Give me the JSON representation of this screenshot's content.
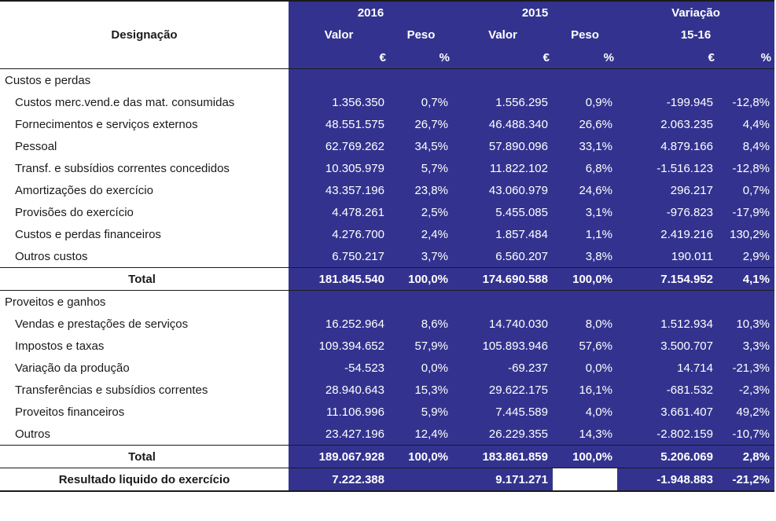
{
  "header": {
    "designacao": "Designação",
    "year_2016": "2016",
    "year_2015": "2015",
    "variacao": "Variação",
    "periodo": "15-16",
    "valor": "Valor",
    "peso": "Peso",
    "euro": "€",
    "percent": "%"
  },
  "custos": {
    "title": "Custos e perdas",
    "rows": [
      {
        "label": "Custos merc.vend.e das mat. consumidas",
        "v2016": "1.356.350",
        "p2016": "0,7%",
        "v2015": "1.556.295",
        "p2015": "0,9%",
        "var_eur": "-199.945",
        "var_pct": "-12,8%"
      },
      {
        "label": "Fornecimentos e serviços externos",
        "v2016": "48.551.575",
        "p2016": "26,7%",
        "v2015": "46.488.340",
        "p2015": "26,6%",
        "var_eur": "2.063.235",
        "var_pct": "4,4%"
      },
      {
        "label": "Pessoal",
        "v2016": "62.769.262",
        "p2016": "34,5%",
        "v2015": "57.890.096",
        "p2015": "33,1%",
        "var_eur": "4.879.166",
        "var_pct": "8,4%"
      },
      {
        "label": "Transf. e subsídios correntes concedidos",
        "v2016": "10.305.979",
        "p2016": "5,7%",
        "v2015": "11.822.102",
        "p2015": "6,8%",
        "var_eur": "-1.516.123",
        "var_pct": "-12,8%"
      },
      {
        "label": "Amortizações do exercício",
        "v2016": "43.357.196",
        "p2016": "23,8%",
        "v2015": "43.060.979",
        "p2015": "24,6%",
        "var_eur": "296.217",
        "var_pct": "0,7%"
      },
      {
        "label": "Provisões do exercício",
        "v2016": "4.478.261",
        "p2016": "2,5%",
        "v2015": "5.455.085",
        "p2015": "3,1%",
        "var_eur": "-976.823",
        "var_pct": "-17,9%"
      },
      {
        "label": "Custos e perdas financeiros",
        "v2016": "4.276.700",
        "p2016": "2,4%",
        "v2015": "1.857.484",
        "p2015": "1,1%",
        "var_eur": "2.419.216",
        "var_pct": "130,2%"
      },
      {
        "label": "Outros custos",
        "v2016": "6.750.217",
        "p2016": "3,7%",
        "v2015": "6.560.207",
        "p2015": "3,8%",
        "var_eur": "190.011",
        "var_pct": "2,9%"
      }
    ],
    "total": {
      "label": "Total",
      "v2016": "181.845.540",
      "p2016": "100,0%",
      "v2015": "174.690.588",
      "p2015": "100,0%",
      "var_eur": "7.154.952",
      "var_pct": "4,1%"
    }
  },
  "proveitos": {
    "title": "Proveitos e ganhos",
    "rows": [
      {
        "label": "Vendas e prestações de serviços",
        "v2016": "16.252.964",
        "p2016": "8,6%",
        "v2015": "14.740.030",
        "p2015": "8,0%",
        "var_eur": "1.512.934",
        "var_pct": "10,3%"
      },
      {
        "label": "Impostos e taxas",
        "v2016": "109.394.652",
        "p2016": "57,9%",
        "v2015": "105.893.946",
        "p2015": "57,6%",
        "var_eur": "3.500.707",
        "var_pct": "3,3%"
      },
      {
        "label": "Variação da produção",
        "v2016": "-54.523",
        "p2016": "0,0%",
        "v2015": "-69.237",
        "p2015": "0,0%",
        "var_eur": "14.714",
        "var_pct": "-21,3%"
      },
      {
        "label": "Transferências e subsídios correntes",
        "v2016": "28.940.643",
        "p2016": "15,3%",
        "v2015": "29.622.175",
        "p2015": "16,1%",
        "var_eur": "-681.532",
        "var_pct": "-2,3%"
      },
      {
        "label": "Proveitos financeiros",
        "v2016": "11.106.996",
        "p2016": "5,9%",
        "v2015": "7.445.589",
        "p2015": "4,0%",
        "var_eur": "3.661.407",
        "var_pct": "49,2%"
      },
      {
        "label": "Outros",
        "v2016": "23.427.196",
        "p2016": "12,4%",
        "v2015": "26.229.355",
        "p2015": "14,3%",
        "var_eur": "-2.802.159",
        "var_pct": "-10,7%"
      }
    ],
    "total": {
      "label": "Total",
      "v2016": "189.067.928",
      "p2016": "100,0%",
      "v2015": "183.861.859",
      "p2015": "100,0%",
      "var_eur": "5.206.069",
      "var_pct": "2,8%"
    }
  },
  "resultado": {
    "label": "Resultado liquido do exercício",
    "v2016": "7.222.388",
    "v2015": "9.171.271",
    "var_eur": "-1.948.883",
    "var_pct": "-21,2%"
  }
}
